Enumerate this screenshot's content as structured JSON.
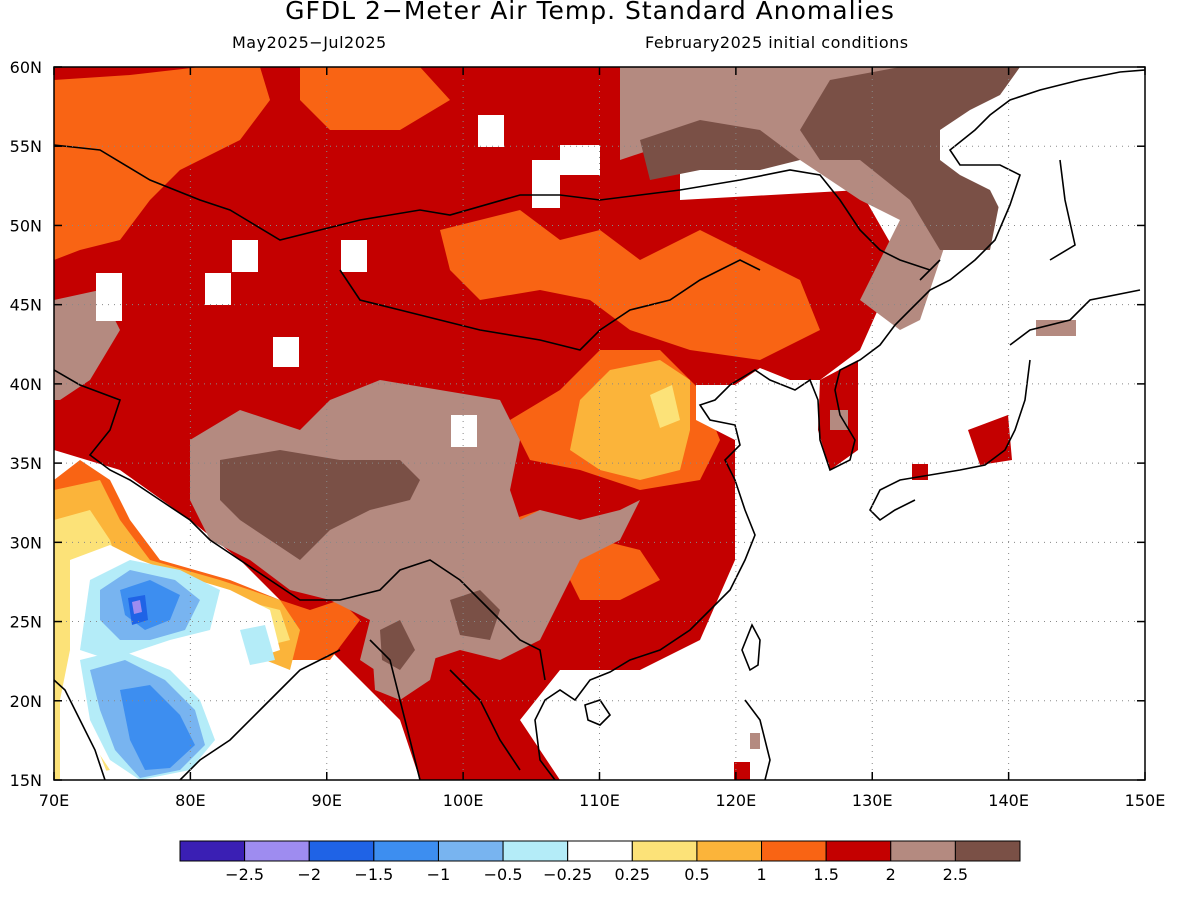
{
  "title": "GFDL 2−Meter Air Temp. Standard Anomalies",
  "subtitle_left": "May2025−Jul2025",
  "subtitle_right": "February2025 initial conditions",
  "map": {
    "lon_range": [
      70,
      150
    ],
    "lat_range": [
      15,
      60
    ],
    "lon_ticks": [
      "70E",
      "80E",
      "90E",
      "100E",
      "110E",
      "120E",
      "130E",
      "140E",
      "150E"
    ],
    "lat_ticks": [
      "15N",
      "20N",
      "25N",
      "30N",
      "35N",
      "40N",
      "45N",
      "50N",
      "55N",
      "60N"
    ],
    "grid": "dotted"
  },
  "legend": {
    "colors": [
      "#3a1fb4",
      "#9e8cf0",
      "#1f63e6",
      "#3d8ef0",
      "#78b4f0",
      "#b4ecf8",
      "#ffffff",
      "#fce278",
      "#fbb43a",
      "#f96414",
      "#c40000",
      "#b48a80",
      "#7a5046"
    ],
    "labels": [
      "−2.5",
      "−2",
      "−1.5",
      "−1",
      "−0.5",
      "−0.25",
      "0.25",
      "0.5",
      "1",
      "1.5",
      "2",
      "2.5"
    ]
  }
}
